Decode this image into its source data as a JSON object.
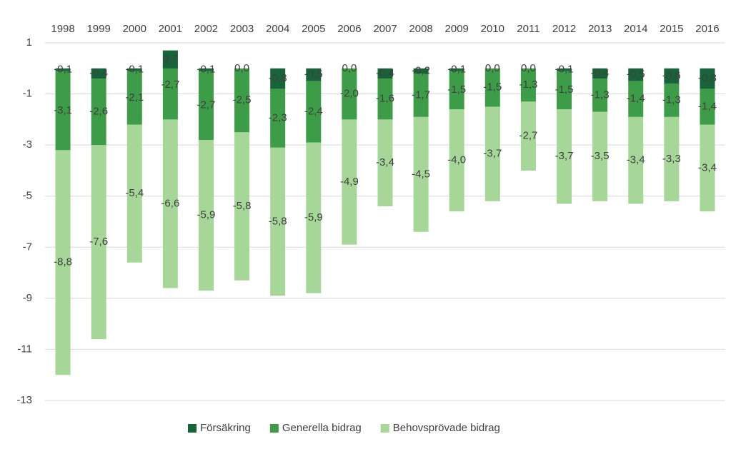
{
  "chart_data": {
    "type": "stacked_bar",
    "categories": [
      "1998",
      "1999",
      "2000",
      "2001",
      "2002",
      "2003",
      "2004",
      "2005",
      "2006",
      "2007",
      "2008",
      "2009",
      "2010",
      "2011",
      "2012",
      "2013",
      "2014",
      "2015",
      "2016"
    ],
    "series": [
      {
        "name": "Försäkring",
        "color": "#17633a",
        "values": [
          -0.1,
          -0.4,
          -0.1,
          0.7,
          -0.1,
          0.0,
          -0.8,
          -0.5,
          0.0,
          -0.4,
          -0.2,
          -0.1,
          0.0,
          0.0,
          -0.1,
          -0.4,
          -0.5,
          -0.6,
          -0.8
        ],
        "value_labels": [
          "-0,1",
          "-0,4",
          "-0,1",
          "0,7",
          "-0,1",
          "0,0",
          "-0,8",
          "-0,5",
          "0,0",
          "-0,4",
          "-0,2",
          "-0,1",
          "0,0",
          "0,0",
          "-0,1",
          "-0,4",
          "-0,5",
          "-0,6",
          "-0,8"
        ]
      },
      {
        "name": "Generella bidrag",
        "color": "#3d9c47",
        "values": [
          -3.1,
          -2.6,
          -2.1,
          -2.7,
          -2.7,
          -2.5,
          -2.3,
          -2.4,
          -2.0,
          -1.6,
          -1.7,
          -1.5,
          -1.5,
          -1.3,
          -1.5,
          -1.3,
          -1.4,
          -1.3,
          -1.4
        ],
        "value_labels": [
          "-3,1",
          "-2,6",
          "-2,1",
          "-2,7",
          "-2,7",
          "-2,5",
          "-2,3",
          "-2,4",
          "-2,0",
          "-1,6",
          "-1,7",
          "-1,5",
          "-1,5",
          "-1,3",
          "-1,5",
          "-1,3",
          "-1,4",
          "-1,3",
          "-1,4"
        ]
      },
      {
        "name": "Behovsprövade bidrag",
        "color": "#a6d698",
        "values": [
          -8.8,
          -7.6,
          -5.4,
          -6.6,
          -5.9,
          -5.8,
          -5.8,
          -5.9,
          -4.9,
          -3.4,
          -4.5,
          -4.0,
          -3.7,
          -2.7,
          -3.7,
          -3.5,
          -3.4,
          -3.3,
          -3.4
        ],
        "value_labels": [
          "-8,8",
          "-7,6",
          "-5,4",
          "-6,6",
          "-5,9",
          "-5,8",
          "-5,8",
          "-5,9",
          "-4,9",
          "-3,4",
          "-4,5",
          "-4,0",
          "-3,7",
          "-2,7",
          "-3,7",
          "-3,5",
          "-3,4",
          "-3,3",
          "-3,4"
        ]
      }
    ],
    "ylim": [
      1,
      -13
    ],
    "yticks": [
      1,
      -1,
      -3,
      -5,
      -7,
      -9,
      -11,
      -13
    ],
    "grid": true,
    "legend": "bottom"
  }
}
